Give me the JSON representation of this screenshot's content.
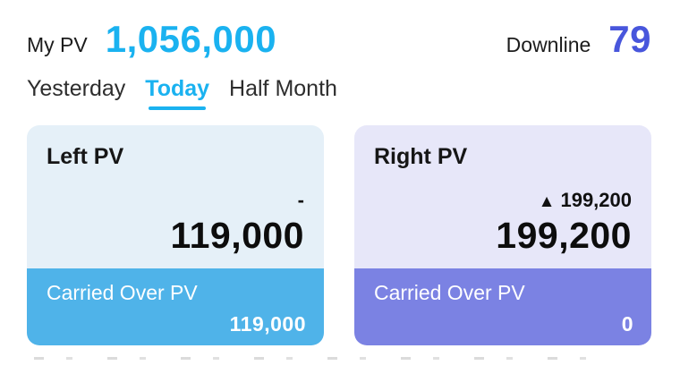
{
  "header": {
    "my_pv_label": "My PV",
    "my_pv_value": "1,056,000",
    "downline_label": "Downline",
    "downline_value": "79"
  },
  "tabs": [
    {
      "label": "Yesterday",
      "active": false
    },
    {
      "label": "Today",
      "active": true
    },
    {
      "label": "Half Month",
      "active": false
    }
  ],
  "cards": [
    {
      "title": "Left PV",
      "delta_icon": "",
      "delta": "-",
      "value": "119,000",
      "footer_label": "Carried Over PV",
      "footer_value": "119,000",
      "bg": "#e5f0f8",
      "accent": "#4fb3e9"
    },
    {
      "title": "Right PV",
      "delta_icon": "▲",
      "delta": "199,200",
      "value": "199,200",
      "footer_label": "Carried Over PV",
      "footer_value": "0",
      "bg": "#e7e7f9",
      "accent": "#7b82e3"
    }
  ],
  "colors": {
    "my_pv_value": "#1ab2f0",
    "downline_value": "#4856dc",
    "tab_active": "#1ab2f0"
  }
}
